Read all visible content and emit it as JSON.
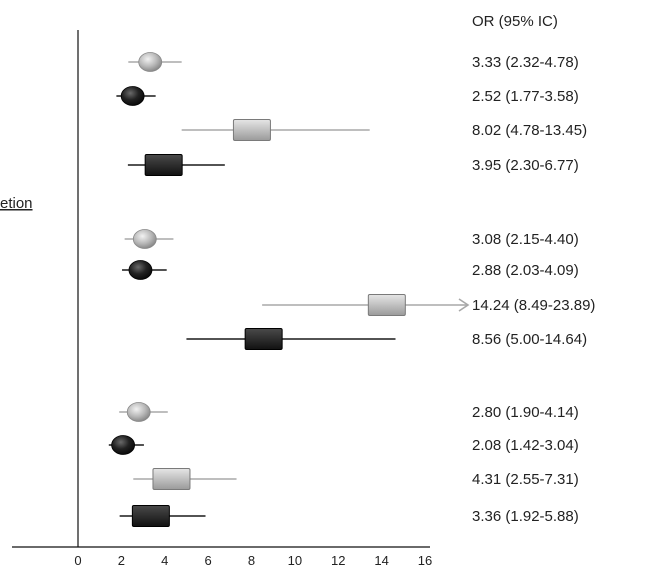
{
  "chart_data": {
    "type": "forest",
    "column_header": "OR (95% IC)",
    "section_label": "etion",
    "xlim": [
      0,
      16
    ],
    "x_ticks": [
      "0",
      "2",
      "4",
      "6",
      "8",
      "10",
      "12",
      "14",
      "16"
    ],
    "groups": [
      {
        "rows": [
          {
            "or": 3.33,
            "lo": 2.32,
            "hi": 4.78,
            "marker": "circle",
            "shade": "light",
            "label": "3.33 (2.32-4.78)"
          },
          {
            "or": 2.52,
            "lo": 1.77,
            "hi": 3.58,
            "marker": "circle",
            "shade": "dark",
            "label": "2.52 (1.77-3.58)"
          },
          {
            "or": 8.02,
            "lo": 4.78,
            "hi": 13.45,
            "marker": "square",
            "shade": "light",
            "label": "8.02 (4.78-13.45)"
          },
          {
            "or": 3.95,
            "lo": 2.3,
            "hi": 6.77,
            "marker": "square",
            "shade": "dark",
            "label": "3.95 (2.30-6.77)"
          }
        ]
      },
      {
        "rows": [
          {
            "or": 3.08,
            "lo": 2.15,
            "hi": 4.4,
            "marker": "circle",
            "shade": "light",
            "label": "3.08 (2.15-4.40)"
          },
          {
            "or": 2.88,
            "lo": 2.03,
            "hi": 4.09,
            "marker": "circle",
            "shade": "dark",
            "label": "2.88 (2.03-4.09)"
          },
          {
            "or": 14.24,
            "lo": 8.49,
            "hi": 23.89,
            "marker": "square",
            "shade": "light",
            "label": "14.24 (8.49-23.89)",
            "arrow": true
          },
          {
            "or": 8.56,
            "lo": 5.0,
            "hi": 14.64,
            "marker": "square",
            "shade": "dark",
            "label": "8.56 (5.00-14.64)"
          }
        ]
      },
      {
        "rows": [
          {
            "or": 2.8,
            "lo": 1.9,
            "hi": 4.14,
            "marker": "circle",
            "shade": "light",
            "label": "2.80 (1.90-4.14)"
          },
          {
            "or": 2.08,
            "lo": 1.42,
            "hi": 3.04,
            "marker": "circle",
            "shade": "dark",
            "label": "2.08 (1.42-3.04)"
          },
          {
            "or": 4.31,
            "lo": 2.55,
            "hi": 7.31,
            "marker": "square",
            "shade": "light",
            "label": "4.31 (2.55-7.31)"
          },
          {
            "or": 3.36,
            "lo": 1.92,
            "hi": 5.88,
            "marker": "square",
            "shade": "dark",
            "label": "3.36 (1.92-5.88)"
          }
        ]
      }
    ],
    "colors": {
      "light_fill": "#b8b8b8",
      "dark_fill": "#2a2a2a",
      "light_line": "#a8a8a8",
      "dark_line": "#1a1a1a"
    }
  }
}
